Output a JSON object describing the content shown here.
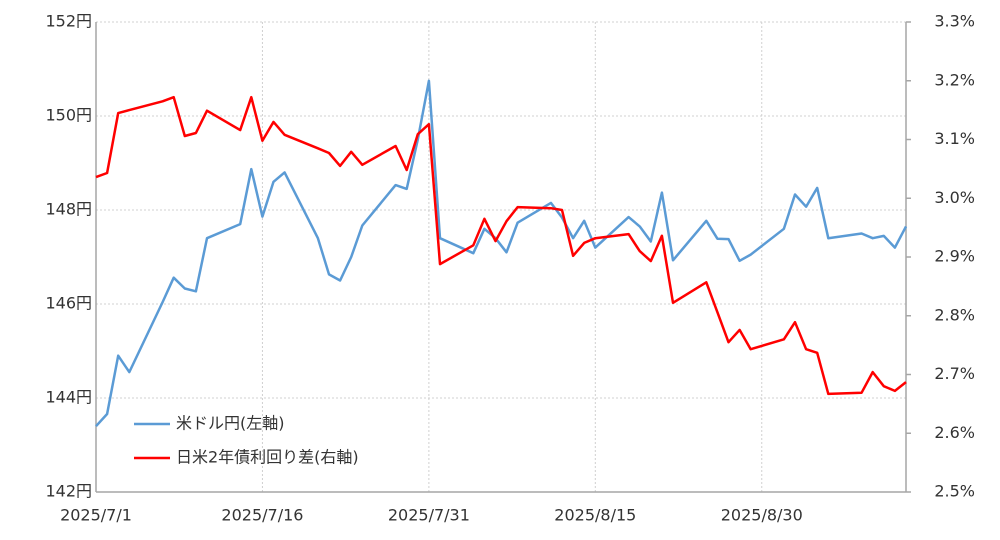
{
  "chart_data": {
    "type": "line",
    "x": [
      "2025-07-01",
      "2025-07-02",
      "2025-07-03",
      "2025-07-04",
      "2025-07-07",
      "2025-07-08",
      "2025-07-09",
      "2025-07-10",
      "2025-07-11",
      "2025-07-14",
      "2025-07-15",
      "2025-07-16",
      "2025-07-17",
      "2025-07-18",
      "2025-07-21",
      "2025-07-22",
      "2025-07-23",
      "2025-07-24",
      "2025-07-25",
      "2025-07-28",
      "2025-07-29",
      "2025-07-30",
      "2025-07-31",
      "2025-08-01",
      "2025-08-04",
      "2025-08-05",
      "2025-08-06",
      "2025-08-07",
      "2025-08-08",
      "2025-08-11",
      "2025-08-12",
      "2025-08-13",
      "2025-08-14",
      "2025-08-15",
      "2025-08-18",
      "2025-08-19",
      "2025-08-20",
      "2025-08-21",
      "2025-08-22",
      "2025-08-25",
      "2025-08-26",
      "2025-08-27",
      "2025-08-28",
      "2025-08-29",
      "2025-09-01",
      "2025-09-02",
      "2025-09-03",
      "2025-09-04",
      "2025-09-05",
      "2025-09-08",
      "2025-09-09",
      "2025-09-10",
      "2025-09-11",
      "2025-09-12"
    ],
    "series": [
      {
        "name": "米ドル円(左軸)",
        "color": "#5b9bd5",
        "values": [
          143.4,
          143.66,
          144.9,
          144.55,
          146.04,
          146.56,
          146.33,
          146.27,
          147.4,
          147.7,
          148.87,
          147.86,
          148.6,
          148.8,
          147.4,
          146.63,
          146.5,
          147.0,
          147.67,
          148.53,
          148.45,
          149.5,
          150.75,
          147.4,
          147.08,
          147.6,
          147.4,
          147.1,
          147.73,
          148.15,
          147.84,
          147.4,
          147.77,
          147.2,
          147.85,
          147.65,
          147.33,
          148.37,
          146.93,
          147.77,
          147.39,
          147.38,
          146.92,
          147.05,
          147.6,
          148.33,
          148.07,
          148.47,
          147.4,
          147.5,
          147.4,
          147.45,
          147.2,
          147.65
        ]
      },
      {
        "name": "日米2年債利回り差(右軸)",
        "color": "#ff0000",
        "axis": "y2",
        "values": [
          3.036,
          3.043,
          3.145,
          3.15,
          3.165,
          3.172,
          3.106,
          3.111,
          3.149,
          3.116,
          3.172,
          3.098,
          3.13,
          3.108,
          3.085,
          3.077,
          3.055,
          3.079,
          3.057,
          3.089,
          3.048,
          3.109,
          3.126,
          2.888,
          2.92,
          2.965,
          2.927,
          2.961,
          2.985,
          2.983,
          2.98,
          2.902,
          2.924,
          2.932,
          2.939,
          2.91,
          2.893,
          2.936,
          2.822,
          2.857,
          2.806,
          2.755,
          2.776,
          2.743,
          2.76,
          2.789,
          2.743,
          2.737,
          2.667,
          2.669,
          2.704,
          2.68,
          2.672,
          2.687
        ]
      }
    ],
    "xlim": [
      "2025-07-01",
      "2025-09-12"
    ],
    "xticks": [
      {
        "value": "2025-07-01",
        "label": "2025/7/1"
      },
      {
        "value": "2025-07-16",
        "label": "2025/7/16"
      },
      {
        "value": "2025-07-31",
        "label": "2025/7/31"
      },
      {
        "value": "2025-08-15",
        "label": "2025/8/15"
      },
      {
        "value": "2025-08-30",
        "label": "2025/8/30"
      }
    ],
    "ylim": [
      142,
      152
    ],
    "yticks": [
      {
        "value": 142,
        "label": "142円"
      },
      {
        "value": 144,
        "label": "144円"
      },
      {
        "value": 146,
        "label": "146円"
      },
      {
        "value": 148,
        "label": "148円"
      },
      {
        "value": 150,
        "label": "150円"
      },
      {
        "value": 152,
        "label": "152円"
      }
    ],
    "y2lim": [
      2.5,
      3.3
    ],
    "y2ticks": [
      {
        "value": 2.5,
        "label": "2.5%"
      },
      {
        "value": 2.6,
        "label": "2.6%"
      },
      {
        "value": 2.7,
        "label": "2.7%"
      },
      {
        "value": 2.8,
        "label": "2.8%"
      },
      {
        "value": 2.9,
        "label": "2.9%"
      },
      {
        "value": 3.0,
        "label": "3.0%"
      },
      {
        "value": 3.1,
        "label": "3.1%"
      },
      {
        "value": 3.2,
        "label": "3.2%"
      },
      {
        "value": 3.3,
        "label": "3.3%"
      }
    ],
    "grid": true,
    "legend": "lower left"
  }
}
